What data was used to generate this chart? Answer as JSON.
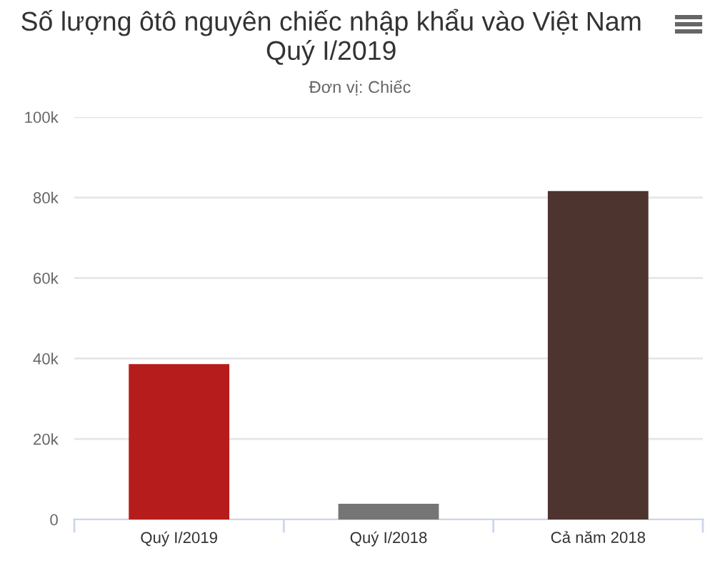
{
  "chart_data": {
    "type": "bar",
    "title": "Số lượng ôtô nguyên chiếc nhập khẩu vào Việt Nam Quý I/2019",
    "subtitle": "Đơn vị: Chiếc",
    "categories": [
      "Quý I/2019",
      "Quý I/2018",
      "Cả năm 2018"
    ],
    "values": [
      38600,
      3900,
      81600
    ],
    "colors": [
      "#b71c1c",
      "#757575",
      "#4e342e"
    ],
    "ylim": [
      0,
      100000
    ],
    "yticks": [
      0,
      {
        "value": 20000,
        "label": "20k"
      },
      {
        "value": 40000,
        "label": "40k"
      },
      {
        "value": 60000,
        "label": "60k"
      },
      {
        "value": 80000,
        "label": "80k"
      },
      {
        "value": 100000,
        "label": "100k"
      }
    ],
    "grid": "y"
  }
}
